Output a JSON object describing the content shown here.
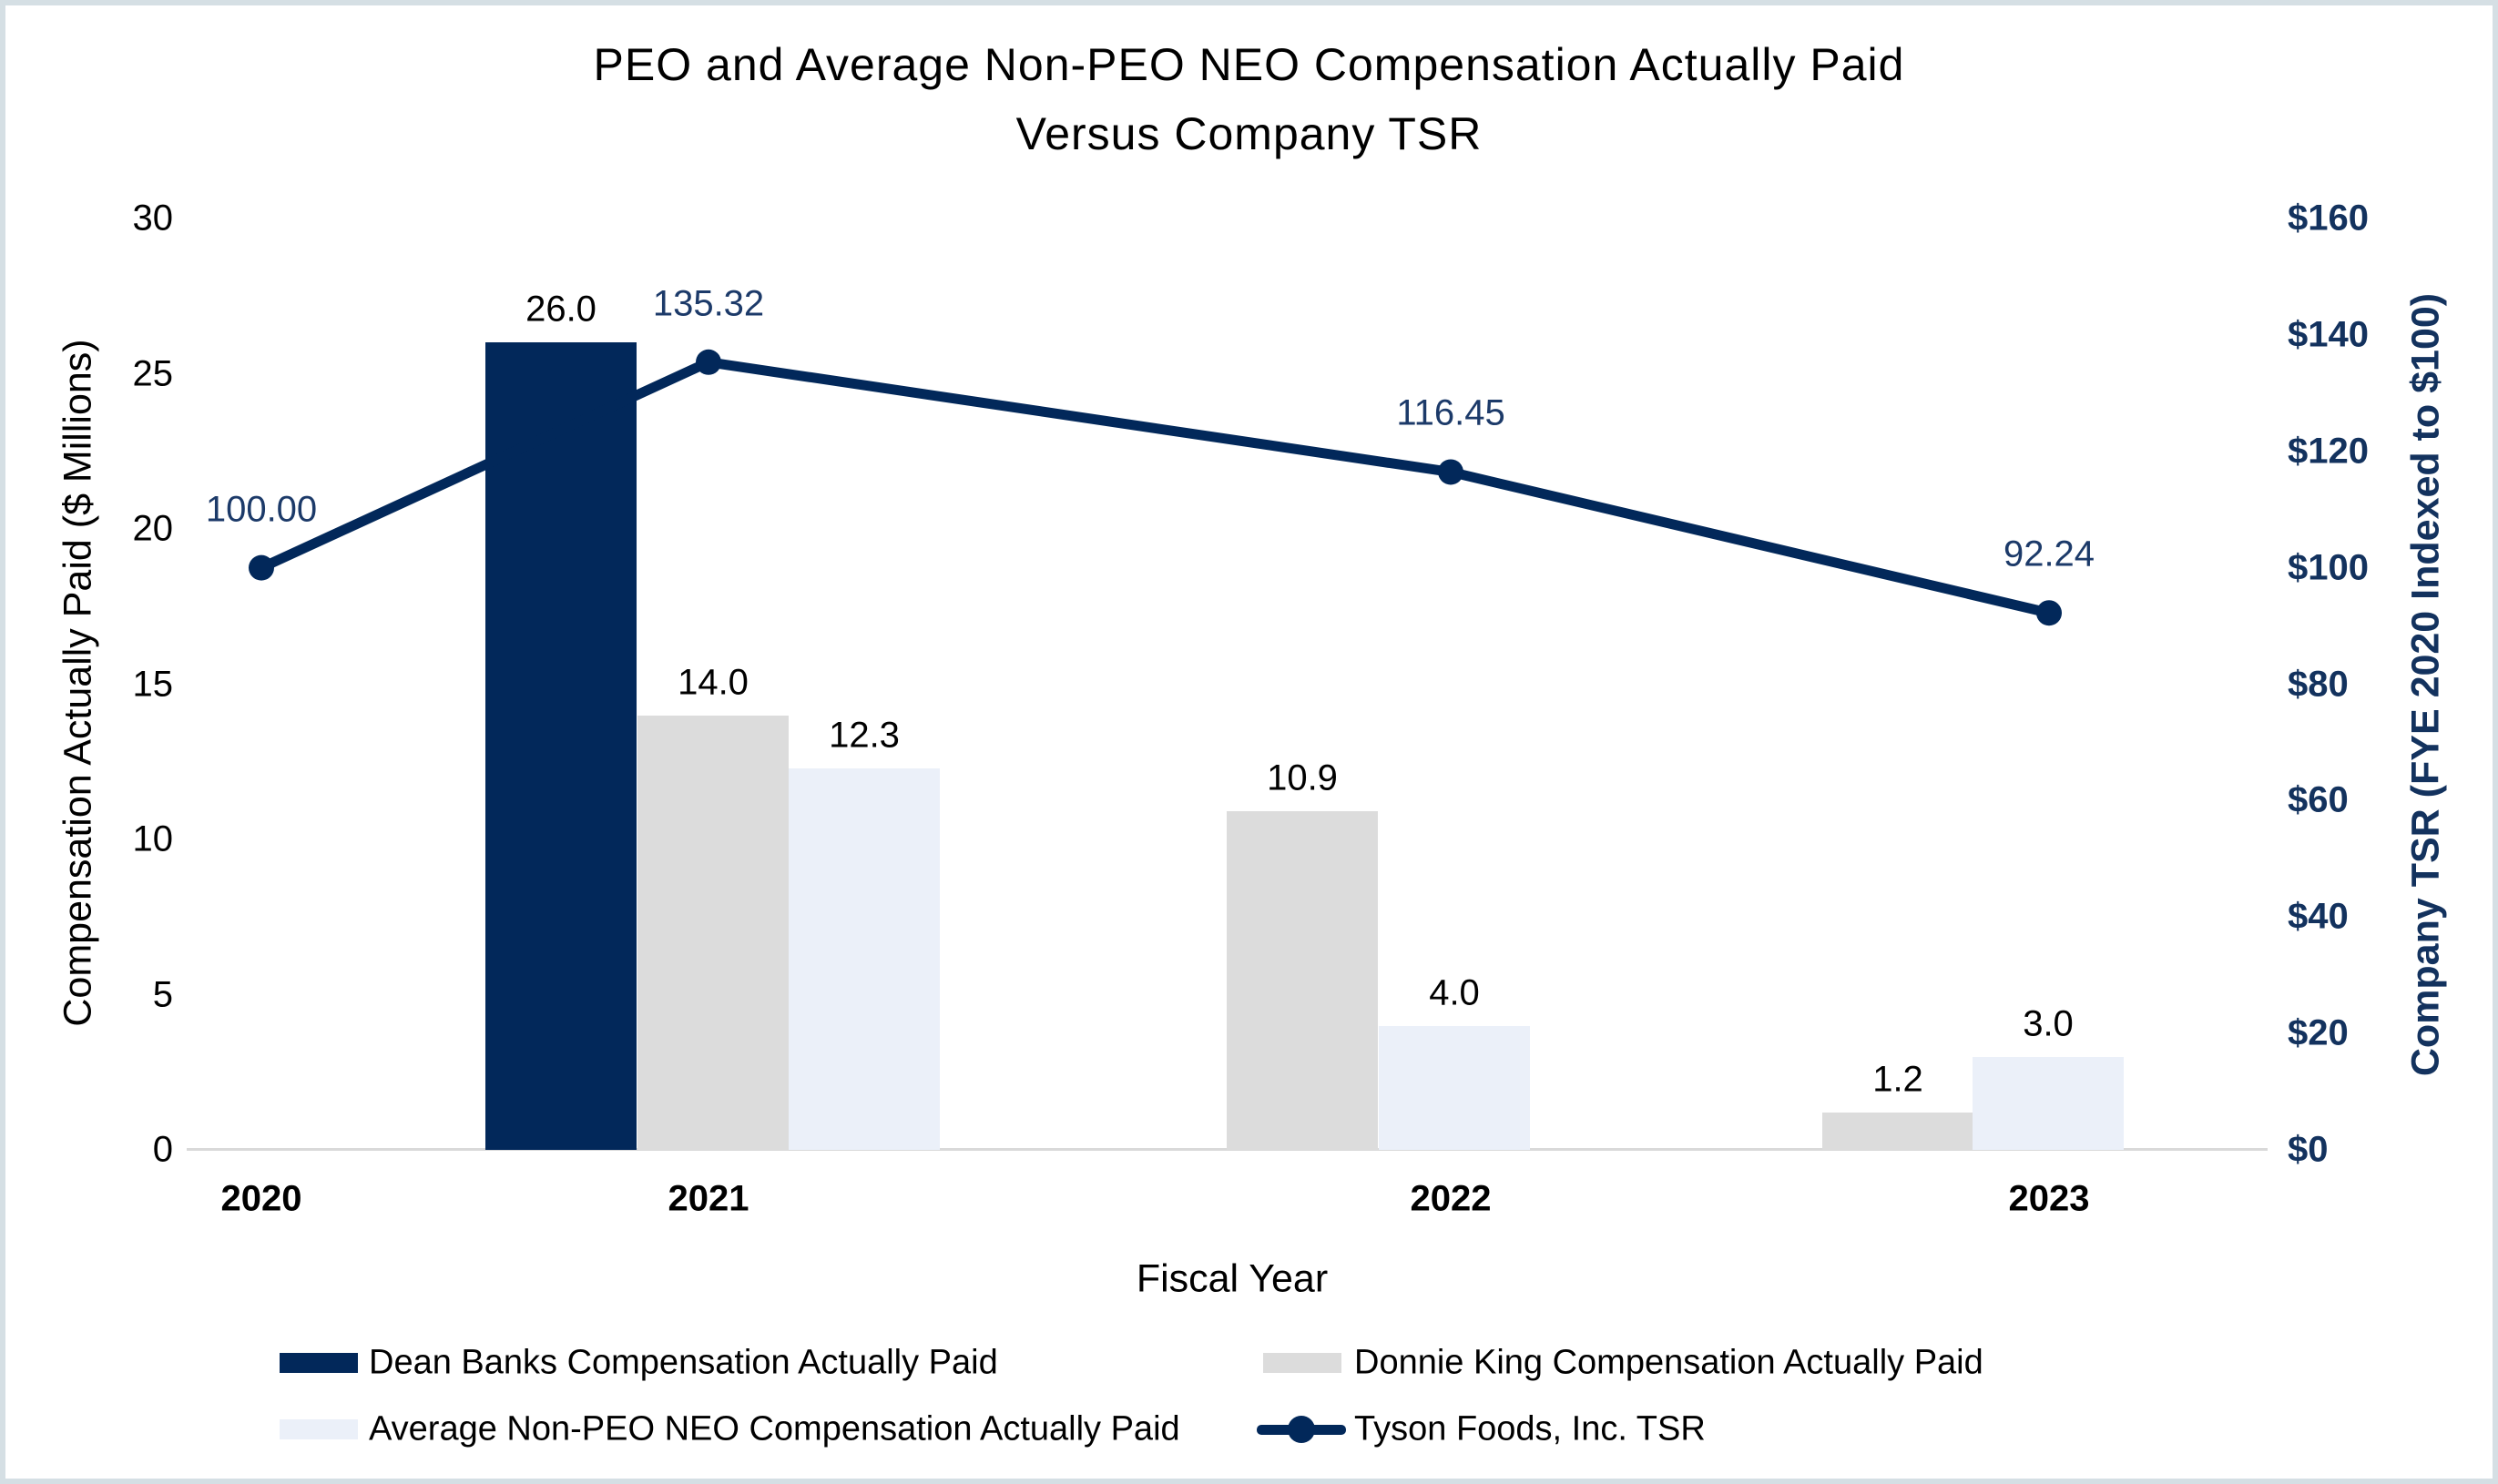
{
  "title": {
    "line1": "PEO and Average Non-PEO NEO Compensation Actually Paid",
    "line2": "Versus Company TSR"
  },
  "colors": {
    "navy": "#02285a",
    "gray": "#dcdcdc",
    "light_blue": "#ebf0f9",
    "tsr_label": "#1c3a69",
    "right_axis_navy": "#13325e",
    "axis_line_gray": "#d9d9d9",
    "frame_border": "#d5dfe4"
  },
  "chart_data": {
    "type": "bar+line",
    "categories": [
      "2020",
      "2021",
      "2022",
      "2023"
    ],
    "bar_series": [
      {
        "name": "Dean Banks Compensation Actually Paid",
        "color_key": "navy",
        "values": [
          null,
          26.0,
          null,
          null
        ],
        "labels": [
          "",
          "26.0",
          "",
          ""
        ]
      },
      {
        "name": "Donnie King Compensation Actually Paid",
        "color_key": "gray",
        "values": [
          null,
          14.0,
          10.9,
          1.2
        ],
        "labels": [
          "",
          "14.0",
          "10.9",
          "1.2"
        ]
      },
      {
        "name": "Average Non-PEO NEO Compensation Actually Paid",
        "color_key": "light_blue",
        "values": [
          null,
          12.3,
          4.0,
          3.0
        ],
        "labels": [
          "",
          "12.3",
          "4.0",
          "3.0"
        ]
      }
    ],
    "line_series": {
      "name": "Tyson Foods, Inc. TSR",
      "color_key": "navy",
      "values": [
        100.0,
        135.32,
        116.45,
        92.24
      ],
      "labels": [
        "100.00",
        "135.32",
        "116.45",
        "92.24"
      ]
    },
    "left_axis": {
      "title": "Compensation Actually Paid ($ Millions)",
      "min": 0,
      "max": 30,
      "step": 5,
      "ticks": [
        "0",
        "5",
        "10",
        "15",
        "20",
        "25",
        "30"
      ]
    },
    "right_axis": {
      "title": "Company TSR (FYE 2020 Indexed to $100)",
      "min": 0,
      "max": 160,
      "step": 20,
      "ticks": [
        "$0",
        "$20",
        "$40",
        "$60",
        "$80",
        "$100",
        "$120",
        "$140",
        "$160"
      ]
    },
    "x_axis": {
      "title": "Fiscal Year"
    },
    "legend": [
      {
        "marker": "bar",
        "color_key": "navy",
        "label": "Dean Banks Compensation Actually Paid"
      },
      {
        "marker": "bar",
        "color_key": "gray",
        "label": "Donnie King Compensation Actually Paid"
      },
      {
        "marker": "bar",
        "color_key": "light_blue",
        "label": "Average Non-PEO NEO Compensation Actually Paid"
      },
      {
        "marker": "line",
        "color_key": "navy",
        "label": "Tyson Foods, Inc. TSR"
      }
    ],
    "grid": false,
    "legend_position": "bottom"
  }
}
